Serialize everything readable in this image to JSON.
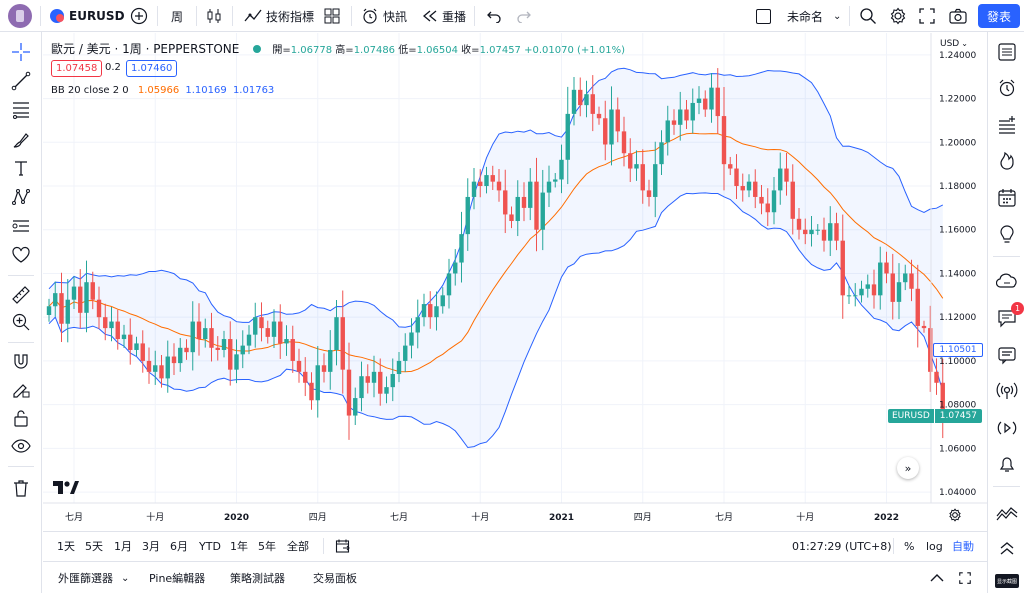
{
  "topbar": {
    "symbol": "EURUSD",
    "interval": "周",
    "indicators_label": "技術指標",
    "alert_label": "快訊",
    "replay_label": "重播",
    "layout_name": "未命名",
    "publish_label": "發表"
  },
  "legend": {
    "title": "歐元 / 美元 · 1周 · PEPPERSTONE",
    "open_label": "開=",
    "open": "1.06778",
    "high_label": "高=",
    "high": "1.07486",
    "low_label": "低=",
    "low": "1.06504",
    "close_label": "收=",
    "close": "1.07457",
    "change": "+0.01070 (+1.01%)",
    "sell_price": "1.07458",
    "spread": "0.2",
    "buy_price": "1.07460",
    "bb_label": "BB 20 close 2 0",
    "bb_basis": "1.05966",
    "bb_upper": "1.10169",
    "bb_lower": "1.01763"
  },
  "chart_data": {
    "type": "candlestick",
    "symbol": "EURUSD",
    "interval": "1W",
    "currency": "USD",
    "y_range": [
      1.035,
      1.25
    ],
    "y_ticks": [
      "1.24000",
      "1.22000",
      "1.20000",
      "1.18000",
      "1.16000",
      "1.14000",
      "1.12000",
      "1.10000",
      "1.08000",
      "1.06000",
      "1.04000"
    ],
    "y_tick_values": [
      1.24,
      1.22,
      1.2,
      1.18,
      1.16,
      1.14,
      1.12,
      1.1,
      1.08,
      1.06,
      1.04
    ],
    "x_ticks": [
      "七月",
      "十月",
      "2020",
      "四月",
      "七月",
      "十月",
      "2021",
      "四月",
      "七月",
      "十月",
      "2022"
    ],
    "x_tick_weeks": [
      4,
      17,
      30,
      43,
      56,
      69,
      82,
      95,
      108,
      121,
      134
    ],
    "bb_price_tag": "1.10501",
    "bb_price_value": 1.10501,
    "last_symbol": "EURUSD",
    "last_price": "1.07457",
    "last_value": 1.07457,
    "up_color": "#26a69a",
    "down_color": "#ef5350",
    "band_color": "#2962ff",
    "basis_color": "#ff6d00",
    "bollinger": {
      "period": 20,
      "source": "close",
      "stddev": 2,
      "offset": 0
    },
    "closes": [
      1.125,
      1.131,
      1.117,
      1.128,
      1.134,
      1.122,
      1.136,
      1.128,
      1.12,
      1.115,
      1.118,
      1.11,
      1.112,
      1.105,
      1.108,
      1.1,
      1.095,
      1.098,
      1.092,
      1.102,
      1.099,
      1.106,
      1.104,
      1.118,
      1.11,
      1.115,
      1.106,
      1.105,
      1.11,
      1.096,
      1.103,
      1.107,
      1.112,
      1.12,
      1.115,
      1.111,
      1.118,
      1.108,
      1.11,
      1.1,
      1.095,
      1.09,
      1.082,
      1.098,
      1.095,
      1.105,
      1.12,
      1.096,
      1.075,
      1.083,
      1.093,
      1.09,
      1.095,
      1.085,
      1.088,
      1.094,
      1.1,
      1.107,
      1.113,
      1.12,
      1.126,
      1.12,
      1.125,
      1.13,
      1.14,
      1.145,
      1.158,
      1.175,
      1.182,
      1.18,
      1.185,
      1.182,
      1.178,
      1.167,
      1.164,
      1.175,
      1.17,
      1.182,
      1.16,
      1.177,
      1.182,
      1.183,
      1.192,
      1.213,
      1.224,
      1.217,
      1.222,
      1.213,
      1.211,
      1.199,
      1.215,
      1.205,
      1.195,
      1.188,
      1.19,
      1.178,
      1.175,
      1.19,
      1.2,
      1.21,
      1.208,
      1.215,
      1.21,
      1.218,
      1.22,
      1.215,
      1.225,
      1.212,
      1.19,
      1.188,
      1.18,
      1.178,
      1.182,
      1.175,
      1.172,
      1.168,
      1.178,
      1.188,
      1.182,
      1.165,
      1.16,
      1.158,
      1.16,
      1.16,
      1.155,
      1.163,
      1.155,
      1.13,
      1.13,
      1.13,
      1.133,
      1.135,
      1.13,
      1.145,
      1.14,
      1.127,
      1.136,
      1.14,
      1.133,
      1.116,
      1.115,
      1.095,
      1.09,
      1.0746
    ]
  },
  "bottombar": {
    "ranges": [
      "1天",
      "5天",
      "1月",
      "3月",
      "6月",
      "YTD",
      "1年",
      "5年",
      "全部"
    ],
    "time": "01:27:29 (UTC+8)",
    "percent": "%",
    "log": "log",
    "auto": "自動"
  },
  "tabs": [
    "外匯篩選器",
    "Pine編輯器",
    "策略測試器",
    "交易面板"
  ],
  "rightbar": {
    "badge": "1"
  },
  "collapsed_note": "显示截图"
}
